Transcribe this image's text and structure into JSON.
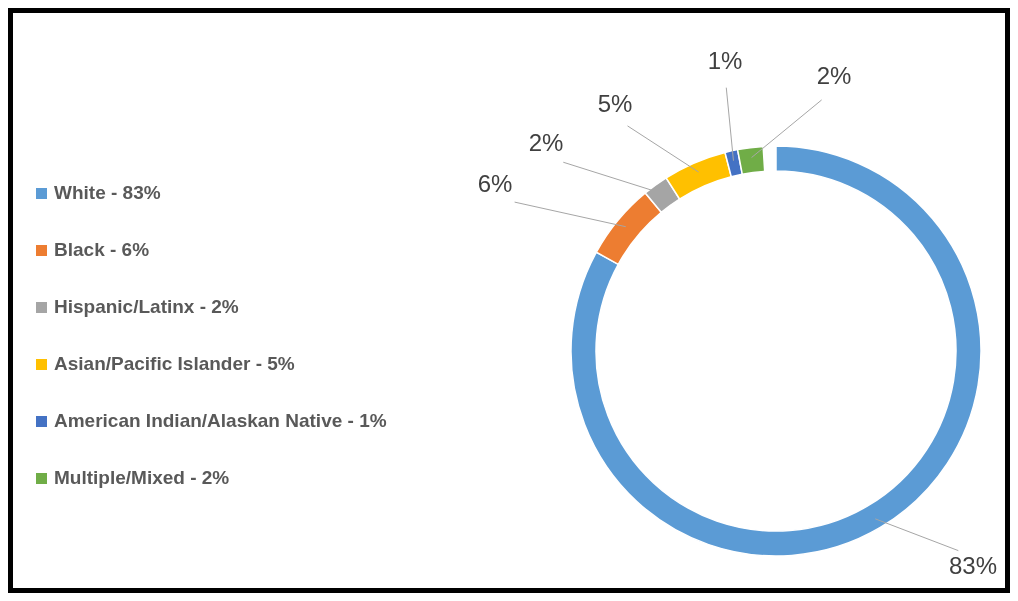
{
  "chart_data": {
    "type": "donut",
    "categories": [
      "White - 83%",
      "Black - 6%",
      "Hispanic/Latinx - 2%",
      "Asian/Pacific Islander - 5%",
      "American Indian/Alaskan Native - 1%",
      "Multiple/Mixed - 2%"
    ],
    "values": [
      83,
      6,
      2,
      5,
      1,
      2
    ],
    "colors": [
      "#5b9bd5",
      "#ed7d31",
      "#a5a5a5",
      "#ffc000",
      "#4472c4",
      "#70ad47"
    ],
    "value_labels": [
      "83%",
      "6%",
      "2%",
      "5%",
      "1%",
      "2%"
    ],
    "legend": "left"
  }
}
